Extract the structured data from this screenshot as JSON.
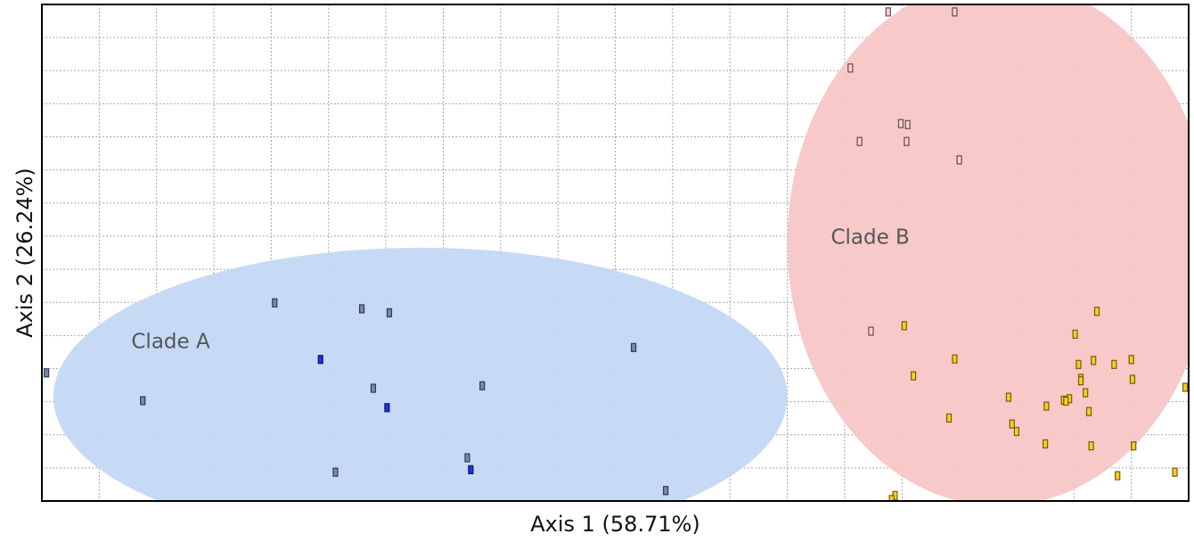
{
  "chart_data": {
    "type": "scatter",
    "xlabel": "Axis 1 (58.71%)",
    "ylabel": "Axis 2 (26.24%)",
    "xlim": [
      0,
      1
    ],
    "ylim": [
      0,
      1
    ],
    "grid": true,
    "legend": "none",
    "annotations": [
      {
        "id": "clade-a",
        "text": "Clade A",
        "x": 0.078,
        "y": 0.308
      },
      {
        "id": "clade-b",
        "text": "Clade B",
        "x": 0.688,
        "y": 0.518
      }
    ],
    "regions": [
      {
        "id": "clade-a",
        "name": "Clade A",
        "color": "#c3d8f4",
        "cx": 0.33,
        "cy": 0.21,
        "rx": 0.32,
        "ry": 0.3
      },
      {
        "id": "clade-b",
        "name": "Clade B",
        "color": "#f7c6c6",
        "cx": 0.835,
        "cy": 0.52,
        "rx": 0.185,
        "ry": 0.53
      }
    ],
    "series": [
      {
        "group": "clade-a-gray",
        "color": "#7a8aa6",
        "stroke": "#303a4e",
        "x": [
          0.004,
          0.088,
          0.203,
          0.279,
          0.303,
          0.289,
          0.256,
          0.384,
          0.516,
          0.371,
          0.544
        ],
        "y": [
          0.258,
          0.202,
          0.399,
          0.387,
          0.379,
          0.227,
          0.058,
          0.232,
          0.309,
          0.087,
          0.021
        ]
      },
      {
        "group": "clade-a-blue",
        "color": "#1a35d8",
        "stroke": "#0c1a70",
        "x": [
          0.243,
          0.301,
          0.374
        ],
        "y": [
          0.285,
          0.188,
          0.063
        ]
      },
      {
        "group": "clade-b-outline",
        "color": "#f4d4d4",
        "stroke": "#6a4848",
        "x": [
          0.738,
          0.796,
          0.705,
          0.749,
          0.755,
          0.713,
          0.754,
          0.8,
          0.723
        ],
        "y": [
          0.985,
          0.985,
          0.872,
          0.76,
          0.758,
          0.724,
          0.724,
          0.687,
          0.342
        ]
      },
      {
        "group": "clade-b-yellow",
        "color": "#f6cf1e",
        "stroke": "#7a5a0a",
        "x": [
          0.752,
          0.92,
          0.901,
          0.796,
          0.76,
          0.917,
          0.904,
          0.935,
          0.906,
          0.95,
          0.906,
          0.951,
          0.91,
          0.843,
          0.876,
          0.896,
          0.891,
          0.893,
          0.913,
          0.791,
          0.846,
          0.85,
          0.997,
          0.875,
          0.915,
          0.952,
          0.938,
          0.988,
          0.744,
          0.741
        ],
        "y": [
          0.353,
          0.382,
          0.336,
          0.286,
          0.252,
          0.283,
          0.275,
          0.275,
          0.247,
          0.285,
          0.242,
          0.245,
          0.218,
          0.209,
          0.191,
          0.206,
          0.203,
          0.201,
          0.18,
          0.167,
          0.155,
          0.14,
          0.229,
          0.115,
          0.111,
          0.111,
          0.051,
          0.058,
          0.011,
          0.003
        ]
      }
    ]
  }
}
